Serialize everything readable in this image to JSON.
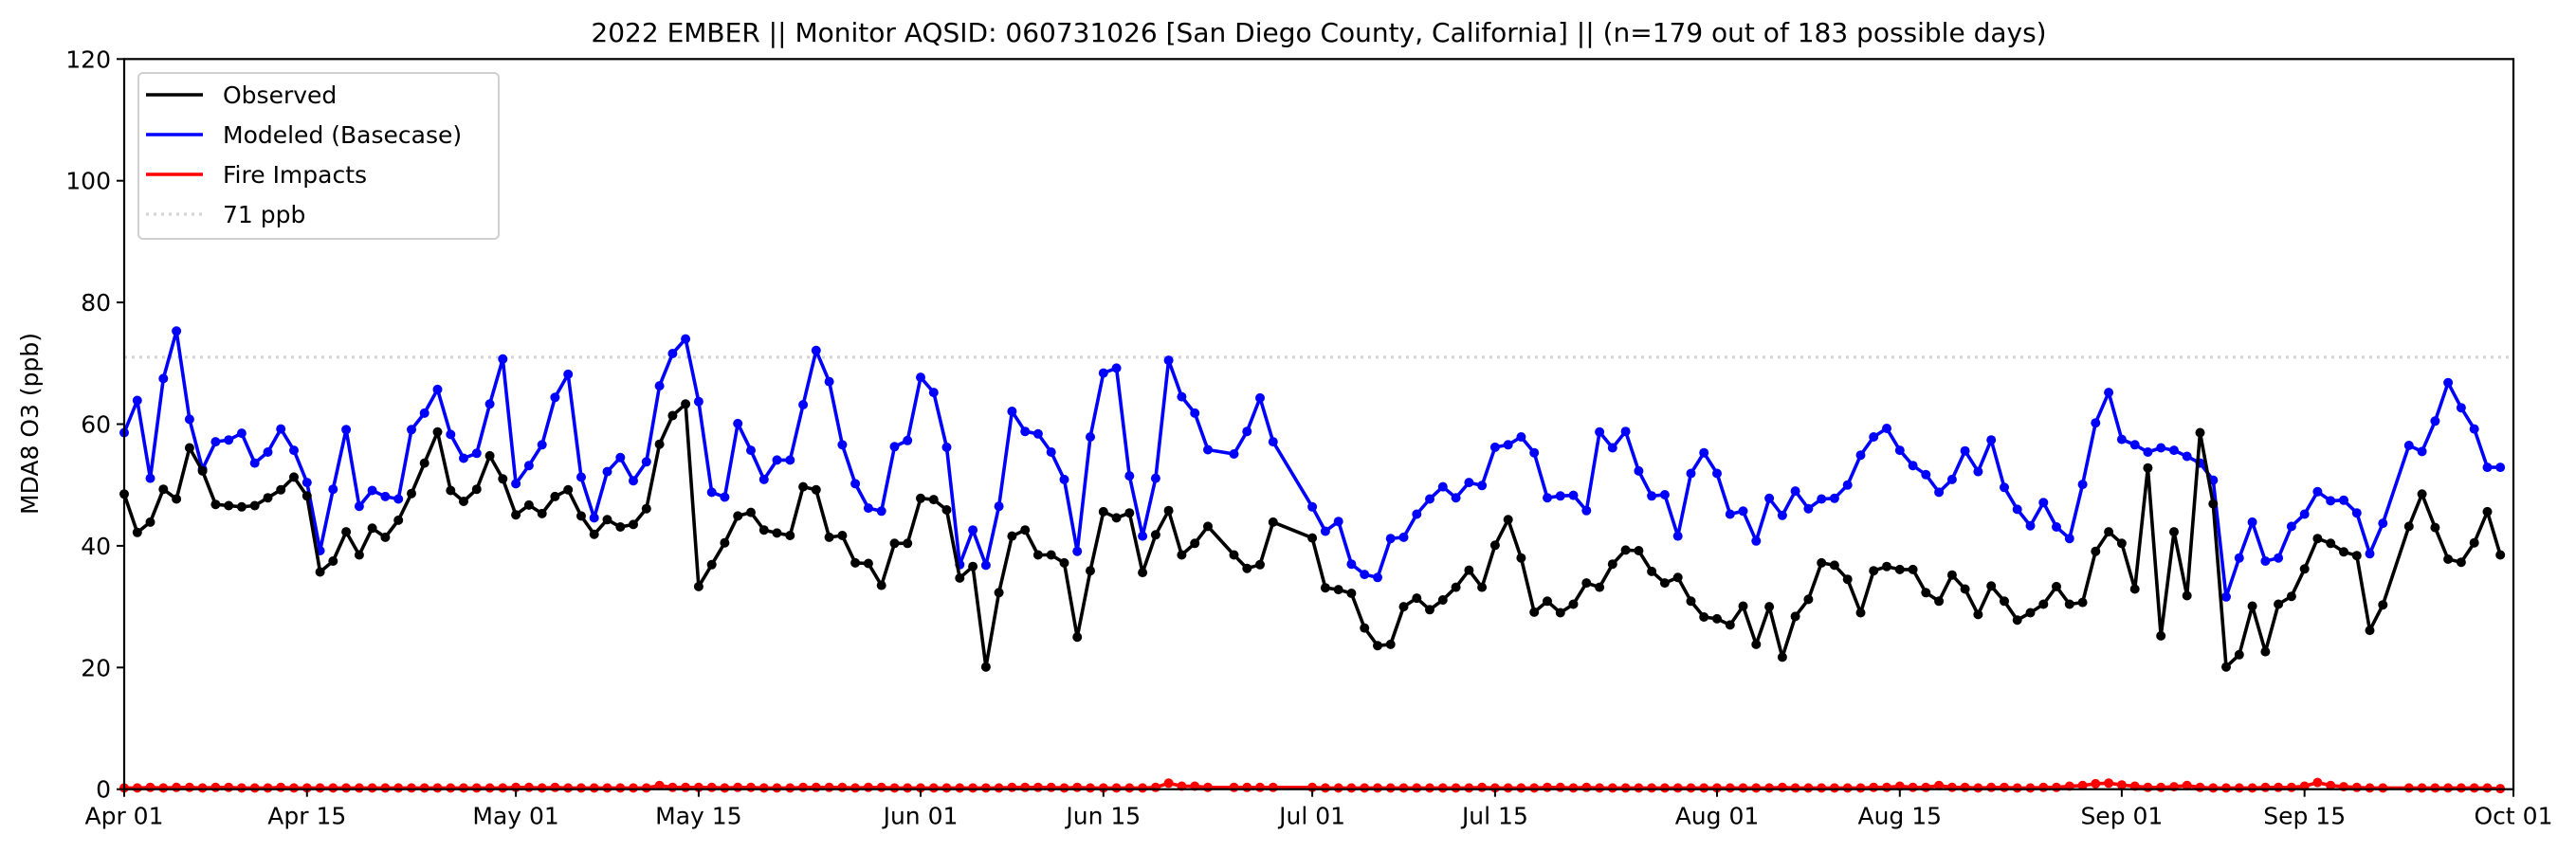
{
  "chart_data": {
    "type": "line",
    "title": "2022 EMBER || Monitor AQSID: 060731026 [San Diego County, California] || (n=179 out of 183 possible days)",
    "xlabel": "",
    "ylabel": "MDA8 O3 (ppb)",
    "x_start": "2022-04-01",
    "x_unit": "day",
    "xlim_days": [
      0,
      183
    ],
    "ylim": [
      0,
      120
    ],
    "grid": false,
    "legend_placement": "top-left",
    "y_ticks": {
      "values": [
        0,
        20,
        40,
        60,
        80,
        100,
        120
      ],
      "labels": [
        "0",
        "20",
        "40",
        "60",
        "80",
        "100",
        "120"
      ]
    },
    "x_ticks": {
      "days": [
        0,
        14,
        30,
        44,
        61,
        75,
        91,
        105,
        122,
        136,
        153,
        167,
        183
      ],
      "labels": [
        "Apr 01",
        "Apr 15",
        "May 01",
        "May 15",
        "Jun 01",
        "Jun 15",
        "Jul 01",
        "Jul 15",
        "Aug 01",
        "Aug 15",
        "Sep 01",
        "Sep 15",
        "Oct 01"
      ]
    },
    "reference_line": {
      "name": "71 ppb",
      "value": 71,
      "color": "#d3d3d3"
    },
    "series": [
      {
        "name": "Observed",
        "color": "#000000",
        "values": [
          48.5,
          42.2,
          43.9,
          49.3,
          47.7,
          56.1,
          52.3,
          46.8,
          46.6,
          46.4,
          46.6,
          47.9,
          49.2,
          51.3,
          48.2,
          35.7,
          37.5,
          42.3,
          38.5,
          42.9,
          41.4,
          44.2,
          48.6,
          53.6,
          58.7,
          49.1,
          47.3,
          49.3,
          54.8,
          51.0,
          45.1,
          46.7,
          45.3,
          48.1,
          49.2,
          44.9,
          41.9,
          44.3,
          43.1,
          43.5,
          46.1,
          56.7,
          61.4,
          63.3,
          33.3,
          36.9,
          40.5,
          44.9,
          45.5,
          42.6,
          42.1,
          41.7,
          49.7,
          49.2,
          41.4,
          41.7,
          37.2,
          37.1,
          33.5,
          40.4,
          40.4,
          47.8,
          47.6,
          45.9,
          34.7,
          36.6,
          20.1,
          32.3,
          41.6,
          42.6,
          38.5,
          38.5,
          37.2,
          25.0,
          35.9,
          45.6,
          44.6,
          45.4,
          35.6,
          41.8,
          45.8,
          38.5,
          40.4,
          43.2,
          null,
          38.5,
          36.3,
          36.9,
          43.9,
          null,
          null,
          41.3,
          33.1,
          32.8,
          32.2,
          26.5,
          23.6,
          23.8,
          30.0,
          31.4,
          29.5,
          31.1,
          33.2,
          36.0,
          33.2,
          40.1,
          44.3,
          38.0,
          29.1,
          30.9,
          29.0,
          30.4,
          33.9,
          33.2,
          37.0,
          39.3,
          39.2,
          35.8,
          33.9,
          34.8,
          30.9,
          28.3,
          28.0,
          27.0,
          30.1,
          23.8,
          30.0,
          21.7,
          28.4,
          31.2,
          37.2,
          36.8,
          34.5,
          29.0,
          35.9,
          36.6,
          36.1,
          36.1,
          32.3,
          30.9,
          35.2,
          32.9,
          28.7,
          33.4,
          30.9,
          27.8,
          29.0,
          30.4,
          33.3,
          30.4,
          30.7,
          39.1,
          42.3,
          40.4,
          32.9,
          52.8,
          25.2,
          42.3,
          31.8,
          58.6,
          46.9,
          20.1,
          22.1,
          30.1,
          22.6,
          30.4,
          31.7,
          36.2,
          41.2,
          40.4,
          39.0,
          38.4,
          26.1,
          30.3,
          null,
          43.2,
          48.5,
          43.0,
          37.8,
          37.3,
          40.5,
          45.6,
          38.5
        ]
      },
      {
        "name": "Modeled (Basecase)",
        "color": "#0000ff",
        "values": [
          58.6,
          63.9,
          51.1,
          67.5,
          75.3,
          60.8,
          52.6,
          57.1,
          57.4,
          58.5,
          53.6,
          55.4,
          59.2,
          55.7,
          50.4,
          39.2,
          49.3,
          59.1,
          46.5,
          49.1,
          48.1,
          47.7,
          59.1,
          61.8,
          65.7,
          58.3,
          54.4,
          55.2,
          63.3,
          70.7,
          50.2,
          53.2,
          56.6,
          64.4,
          68.2,
          51.3,
          44.6,
          52.2,
          54.5,
          50.7,
          53.8,
          66.3,
          71.6,
          74.0,
          63.7,
          48.8,
          48.0,
          60.1,
          55.7,
          50.9,
          54.1,
          54.1,
          63.2,
          72.1,
          67.0,
          56.6,
          50.2,
          46.2,
          45.7,
          56.3,
          57.3,
          67.7,
          65.2,
          56.2,
          36.9,
          42.6,
          36.8,
          46.5,
          62.1,
          58.8,
          58.4,
          55.4,
          50.9,
          39.1,
          57.9,
          68.4,
          69.2,
          51.5,
          41.6,
          51.1,
          70.5,
          64.5,
          61.8,
          55.8,
          null,
          55.1,
          58.8,
          64.3,
          57.1,
          null,
          null,
          46.4,
          42.4,
          44.0,
          37.0,
          35.3,
          34.8,
          41.2,
          41.4,
          45.2,
          47.7,
          49.7,
          47.9,
          50.4,
          49.9,
          56.2,
          56.6,
          57.9,
          55.3,
          47.9,
          48.2,
          48.3,
          45.8,
          58.7,
          56.1,
          58.8,
          52.3,
          48.2,
          48.4,
          41.6,
          51.9,
          55.3,
          51.9,
          45.2,
          45.7,
          40.8,
          47.8,
          45.0,
          49.0,
          46.1,
          47.7,
          47.8,
          50.0,
          54.9,
          57.9,
          59.3,
          55.7,
          53.2,
          51.7,
          48.8,
          50.9,
          55.6,
          52.2,
          57.4,
          49.6,
          46.0,
          43.3,
          47.1,
          43.1,
          41.2,
          50.1,
          60.2,
          65.2,
          57.5,
          56.6,
          55.4,
          56.1,
          55.7,
          54.7,
          53.6,
          50.8,
          31.6,
          38.0,
          43.9,
          37.5,
          38.0,
          43.2,
          45.2,
          48.9,
          47.4,
          47.5,
          45.4,
          38.7,
          43.7,
          null,
          56.5,
          55.5,
          60.5,
          66.8,
          62.7,
          59.2,
          52.9,
          52.9
        ]
      },
      {
        "name": "Fire Impacts",
        "color": "#ff0000",
        "values": [
          0.2,
          0.2,
          0.3,
          0.2,
          0.3,
          0.3,
          0.2,
          0.3,
          0.3,
          0.2,
          0.2,
          0.2,
          0.3,
          0.2,
          0.2,
          0.2,
          0.2,
          0.2,
          0.2,
          0.2,
          0.2,
          0.2,
          0.2,
          0.2,
          0.2,
          0.2,
          0.2,
          0.2,
          0.2,
          0.2,
          0.3,
          0.3,
          0.2,
          0.3,
          0.2,
          0.2,
          0.2,
          0.2,
          0.2,
          0.2,
          0.2,
          0.6,
          0.3,
          0.3,
          0.3,
          0.3,
          0.2,
          0.3,
          0.3,
          0.2,
          0.2,
          0.2,
          0.3,
          0.3,
          0.3,
          0.3,
          0.2,
          0.3,
          0.3,
          0.2,
          0.2,
          0.2,
          0.2,
          0.2,
          0.2,
          0.2,
          0.2,
          0.2,
          0.3,
          0.3,
          0.3,
          0.3,
          0.2,
          0.3,
          0.2,
          0.2,
          0.2,
          0.2,
          0.2,
          0.3,
          1.0,
          0.5,
          0.5,
          0.3,
          null,
          0.3,
          0.3,
          0.3,
          0.3,
          null,
          null,
          0.3,
          0.2,
          0.2,
          0.2,
          0.2,
          0.2,
          0.2,
          0.2,
          0.2,
          0.2,
          0.2,
          0.2,
          0.2,
          0.3,
          0.2,
          0.2,
          0.2,
          0.2,
          0.3,
          0.3,
          0.2,
          0.3,
          0.2,
          0.2,
          0.2,
          0.2,
          0.2,
          0.2,
          0.2,
          0.2,
          0.2,
          0.2,
          0.2,
          0.2,
          0.2,
          0.2,
          0.3,
          0.2,
          0.2,
          0.2,
          0.2,
          0.2,
          0.2,
          0.3,
          0.3,
          0.5,
          0.3,
          0.3,
          0.6,
          0.3,
          0.3,
          0.2,
          0.3,
          0.3,
          0.2,
          0.2,
          0.3,
          0.3,
          0.5,
          0.6,
          0.9,
          1.0,
          0.7,
          0.5,
          0.3,
          0.3,
          0.4,
          0.6,
          0.3,
          0.2,
          0.2,
          0.2,
          0.2,
          0.3,
          0.3,
          0.3,
          0.5,
          1.1,
          0.6,
          0.4,
          0.3,
          0.2,
          0.2,
          null,
          0.2,
          0.2,
          0.2,
          0.2,
          0.2,
          0.2,
          0.2,
          0.1
        ]
      }
    ],
    "legend": [
      "Observed",
      "Modeled (Basecase)",
      "Fire Impacts",
      "71 ppb"
    ]
  }
}
